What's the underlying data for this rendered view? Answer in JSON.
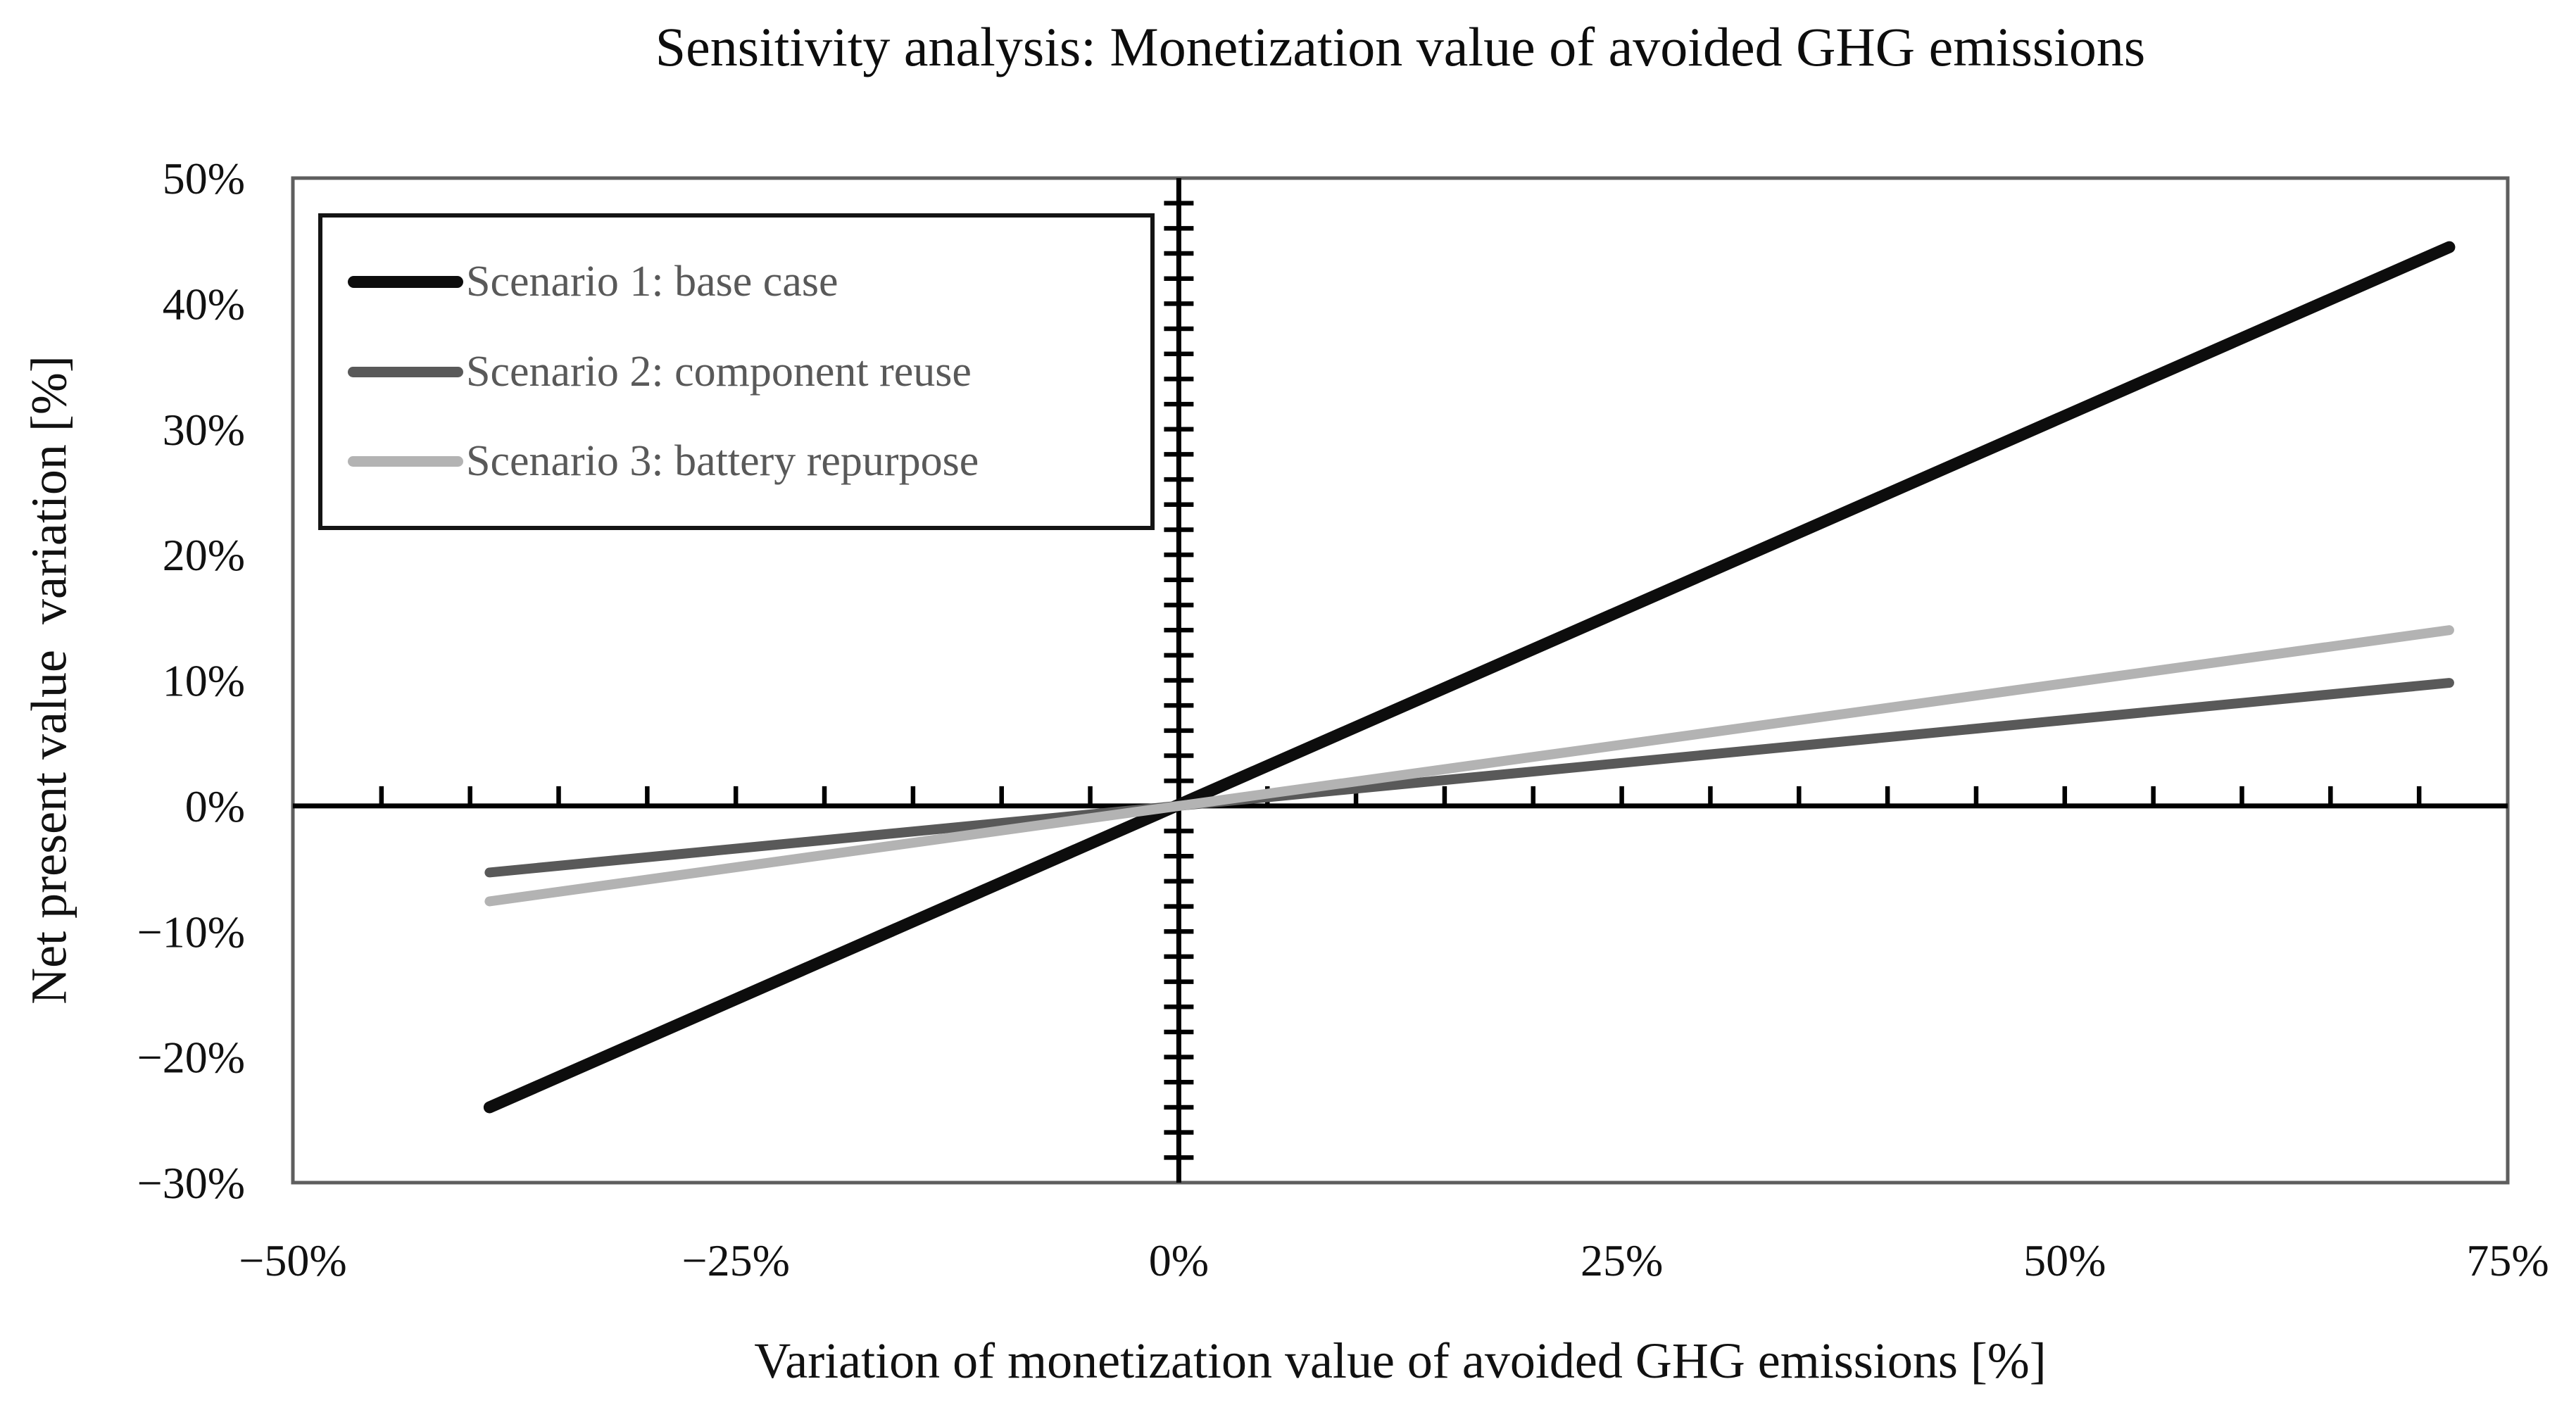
{
  "chart_data": {
    "type": "line",
    "title": "Sensitivity analysis: Monetization value of avoided GHG emissions",
    "xlabel": "Variation of monetization value of avoided GHG emissions [%]",
    "ylabel": "Net present value  variation [%]",
    "xlim": [
      -50,
      75
    ],
    "ylim": [
      -30,
      50
    ],
    "x_major_ticks": [
      -50,
      -25,
      0,
      25,
      50,
      75
    ],
    "x_tick_labels": [
      "−50%",
      "−25%",
      "0%",
      "25%",
      "50%",
      "75%"
    ],
    "y_major_ticks": [
      50,
      40,
      30,
      20,
      10,
      0,
      -10,
      -20,
      -30
    ],
    "y_tick_labels": [
      "50%",
      "40%",
      "30%",
      "20%",
      "10%",
      "0%",
      "−10%",
      "−20%",
      "−30%"
    ],
    "x_minor_tick_step": 5,
    "y_minor_tick_step": 2,
    "axes_cross_at": [
      0,
      0
    ],
    "grid": false,
    "legend_position": "top-left-inside",
    "axis_color": "#000000",
    "plot_border_color": "#5e5e5e",
    "series": [
      {
        "name": "Scenario 1: base case",
        "color": "#0d0d0d",
        "width": 17,
        "points": [
          [
            -38.9,
            -24.0
          ],
          [
            71.7,
            44.5
          ]
        ]
      },
      {
        "name": "Scenario 2: component reuse",
        "color": "#595959",
        "width": 14,
        "points": [
          [
            -38.9,
            -5.3
          ],
          [
            71.7,
            9.8
          ]
        ]
      },
      {
        "name": "Scenario 3: battery repurpose",
        "color": "#b3b3b3",
        "width": 14,
        "points": [
          [
            -38.9,
            -7.6
          ],
          [
            71.7,
            14.0
          ]
        ]
      }
    ]
  }
}
